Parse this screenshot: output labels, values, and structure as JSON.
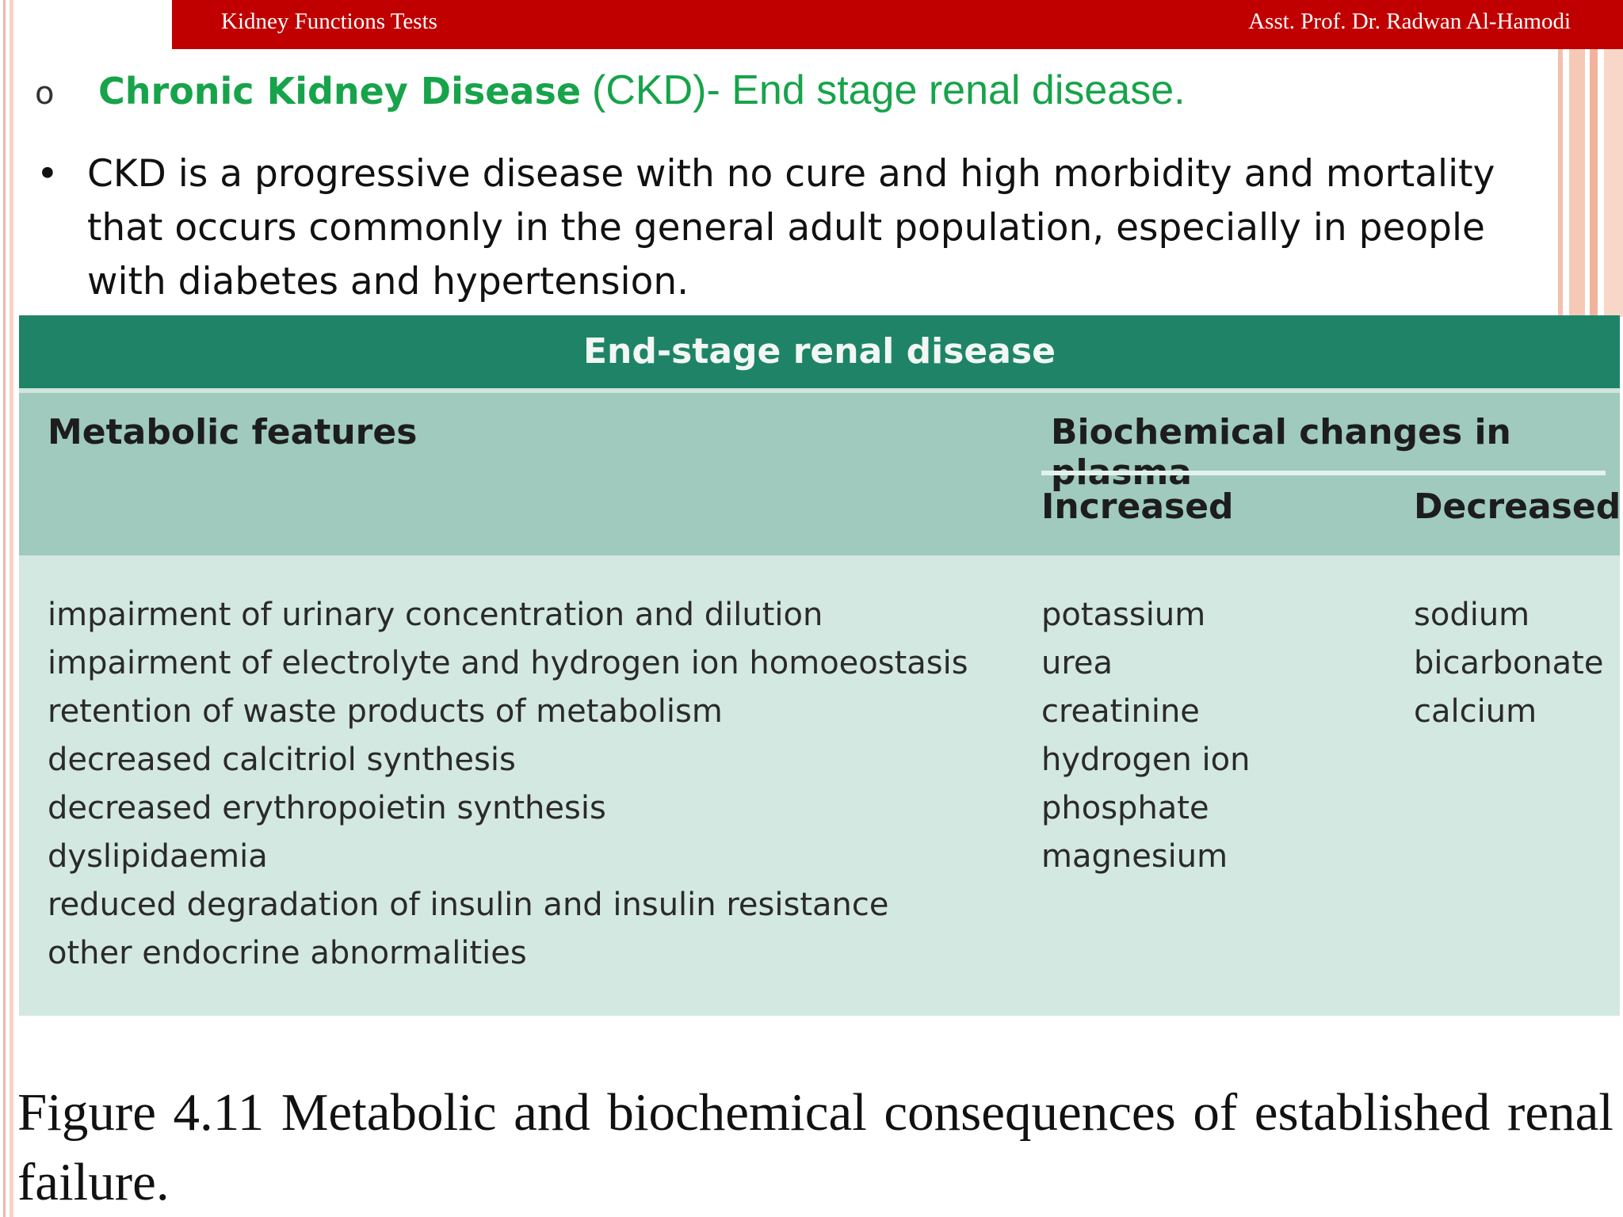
{
  "header": {
    "left_text": "Kidney Functions Tests",
    "right_text": "Asst. Prof. Dr. Radwan Al-Hamodi"
  },
  "heading": {
    "marker": "o",
    "bold": "Chronic Kidney Disease",
    "rest": "(CKD)- End stage renal disease."
  },
  "bullet": {
    "symbol": "•",
    "text": "CKD is a progressive disease with no cure and high morbidity and mortality that occurs commonly in the general adult population, especially in people with diabetes and hypertension."
  },
  "figure": {
    "title": "End-stage renal disease",
    "metabolic_header": "Metabolic features",
    "biochem_header": "Biochemical changes in plasma",
    "increased_header": "Increased",
    "decreased_header": "Decreased",
    "metabolic_features": [
      "impairment of urinary concentration and dilution",
      "impairment of electrolyte and hydrogen ion homoeostasis",
      "retention of waste products of metabolism",
      "decreased calcitriol synthesis",
      "decreased erythropoietin synthesis",
      "dyslipidaemia",
      "reduced degradation of insulin and insulin resistance",
      "other endocrine abnormalities"
    ],
    "increased": [
      "potassium",
      "urea",
      "creatinine",
      "hydrogen ion",
      "phosphate",
      "magnesium"
    ],
    "decreased": [
      "sodium",
      "bicarbonate",
      "calcium"
    ]
  },
  "caption": {
    "words_line1": [
      "Figure",
      "4.11",
      "Metabolic",
      "and",
      "biochemical",
      "consequences",
      "of",
      "established",
      "renal"
    ],
    "line2": "failure."
  }
}
